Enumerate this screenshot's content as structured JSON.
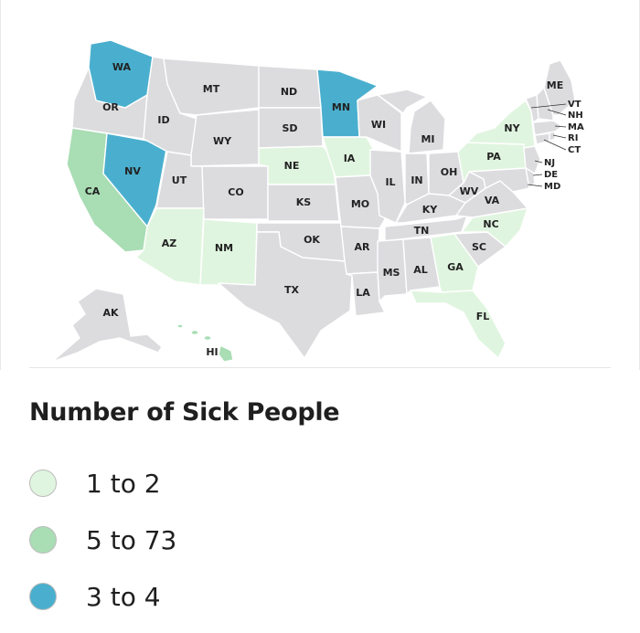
{
  "legend": {
    "title": "Number of Sick People",
    "items": [
      {
        "label": "1 to 2",
        "color": "#e0f5df"
      },
      {
        "label": "5 to 73",
        "color": "#a9ddb4"
      },
      {
        "label": "3 to 4",
        "color": "#4aafce"
      }
    ]
  },
  "colors": {
    "no_data": "#dcdcdf",
    "light": "#e0f5df",
    "mid": "#a9ddb4",
    "dark": "#4aafce",
    "border": "#ffffff"
  },
  "states": {
    "WA": "dark",
    "OR": "none",
    "CA": "mid",
    "NV": "dark",
    "ID": "none",
    "MT": "none",
    "WY": "none",
    "UT": "none",
    "AZ": "light",
    "CO": "none",
    "NM": "light",
    "ND": "none",
    "SD": "none",
    "NE": "light",
    "KS": "none",
    "OK": "none",
    "TX": "none",
    "MN": "dark",
    "IA": "light",
    "MO": "none",
    "AR": "none",
    "LA": "none",
    "WI": "none",
    "IL": "none",
    "MS": "none",
    "MI": "none",
    "IN": "none",
    "KY": "none",
    "TN": "none",
    "AL": "none",
    "OH": "none",
    "WV": "none",
    "GA": "light",
    "FL": "light",
    "SC": "none",
    "NC": "light",
    "VA": "none",
    "PA": "light",
    "NY": "light",
    "ME": "none",
    "VT": "none",
    "NH": "none",
    "MA": "none",
    "RI": "none",
    "CT": "none",
    "NJ": "none",
    "DE": "none",
    "MD": "none",
    "AK": "none",
    "HI": "mid"
  }
}
